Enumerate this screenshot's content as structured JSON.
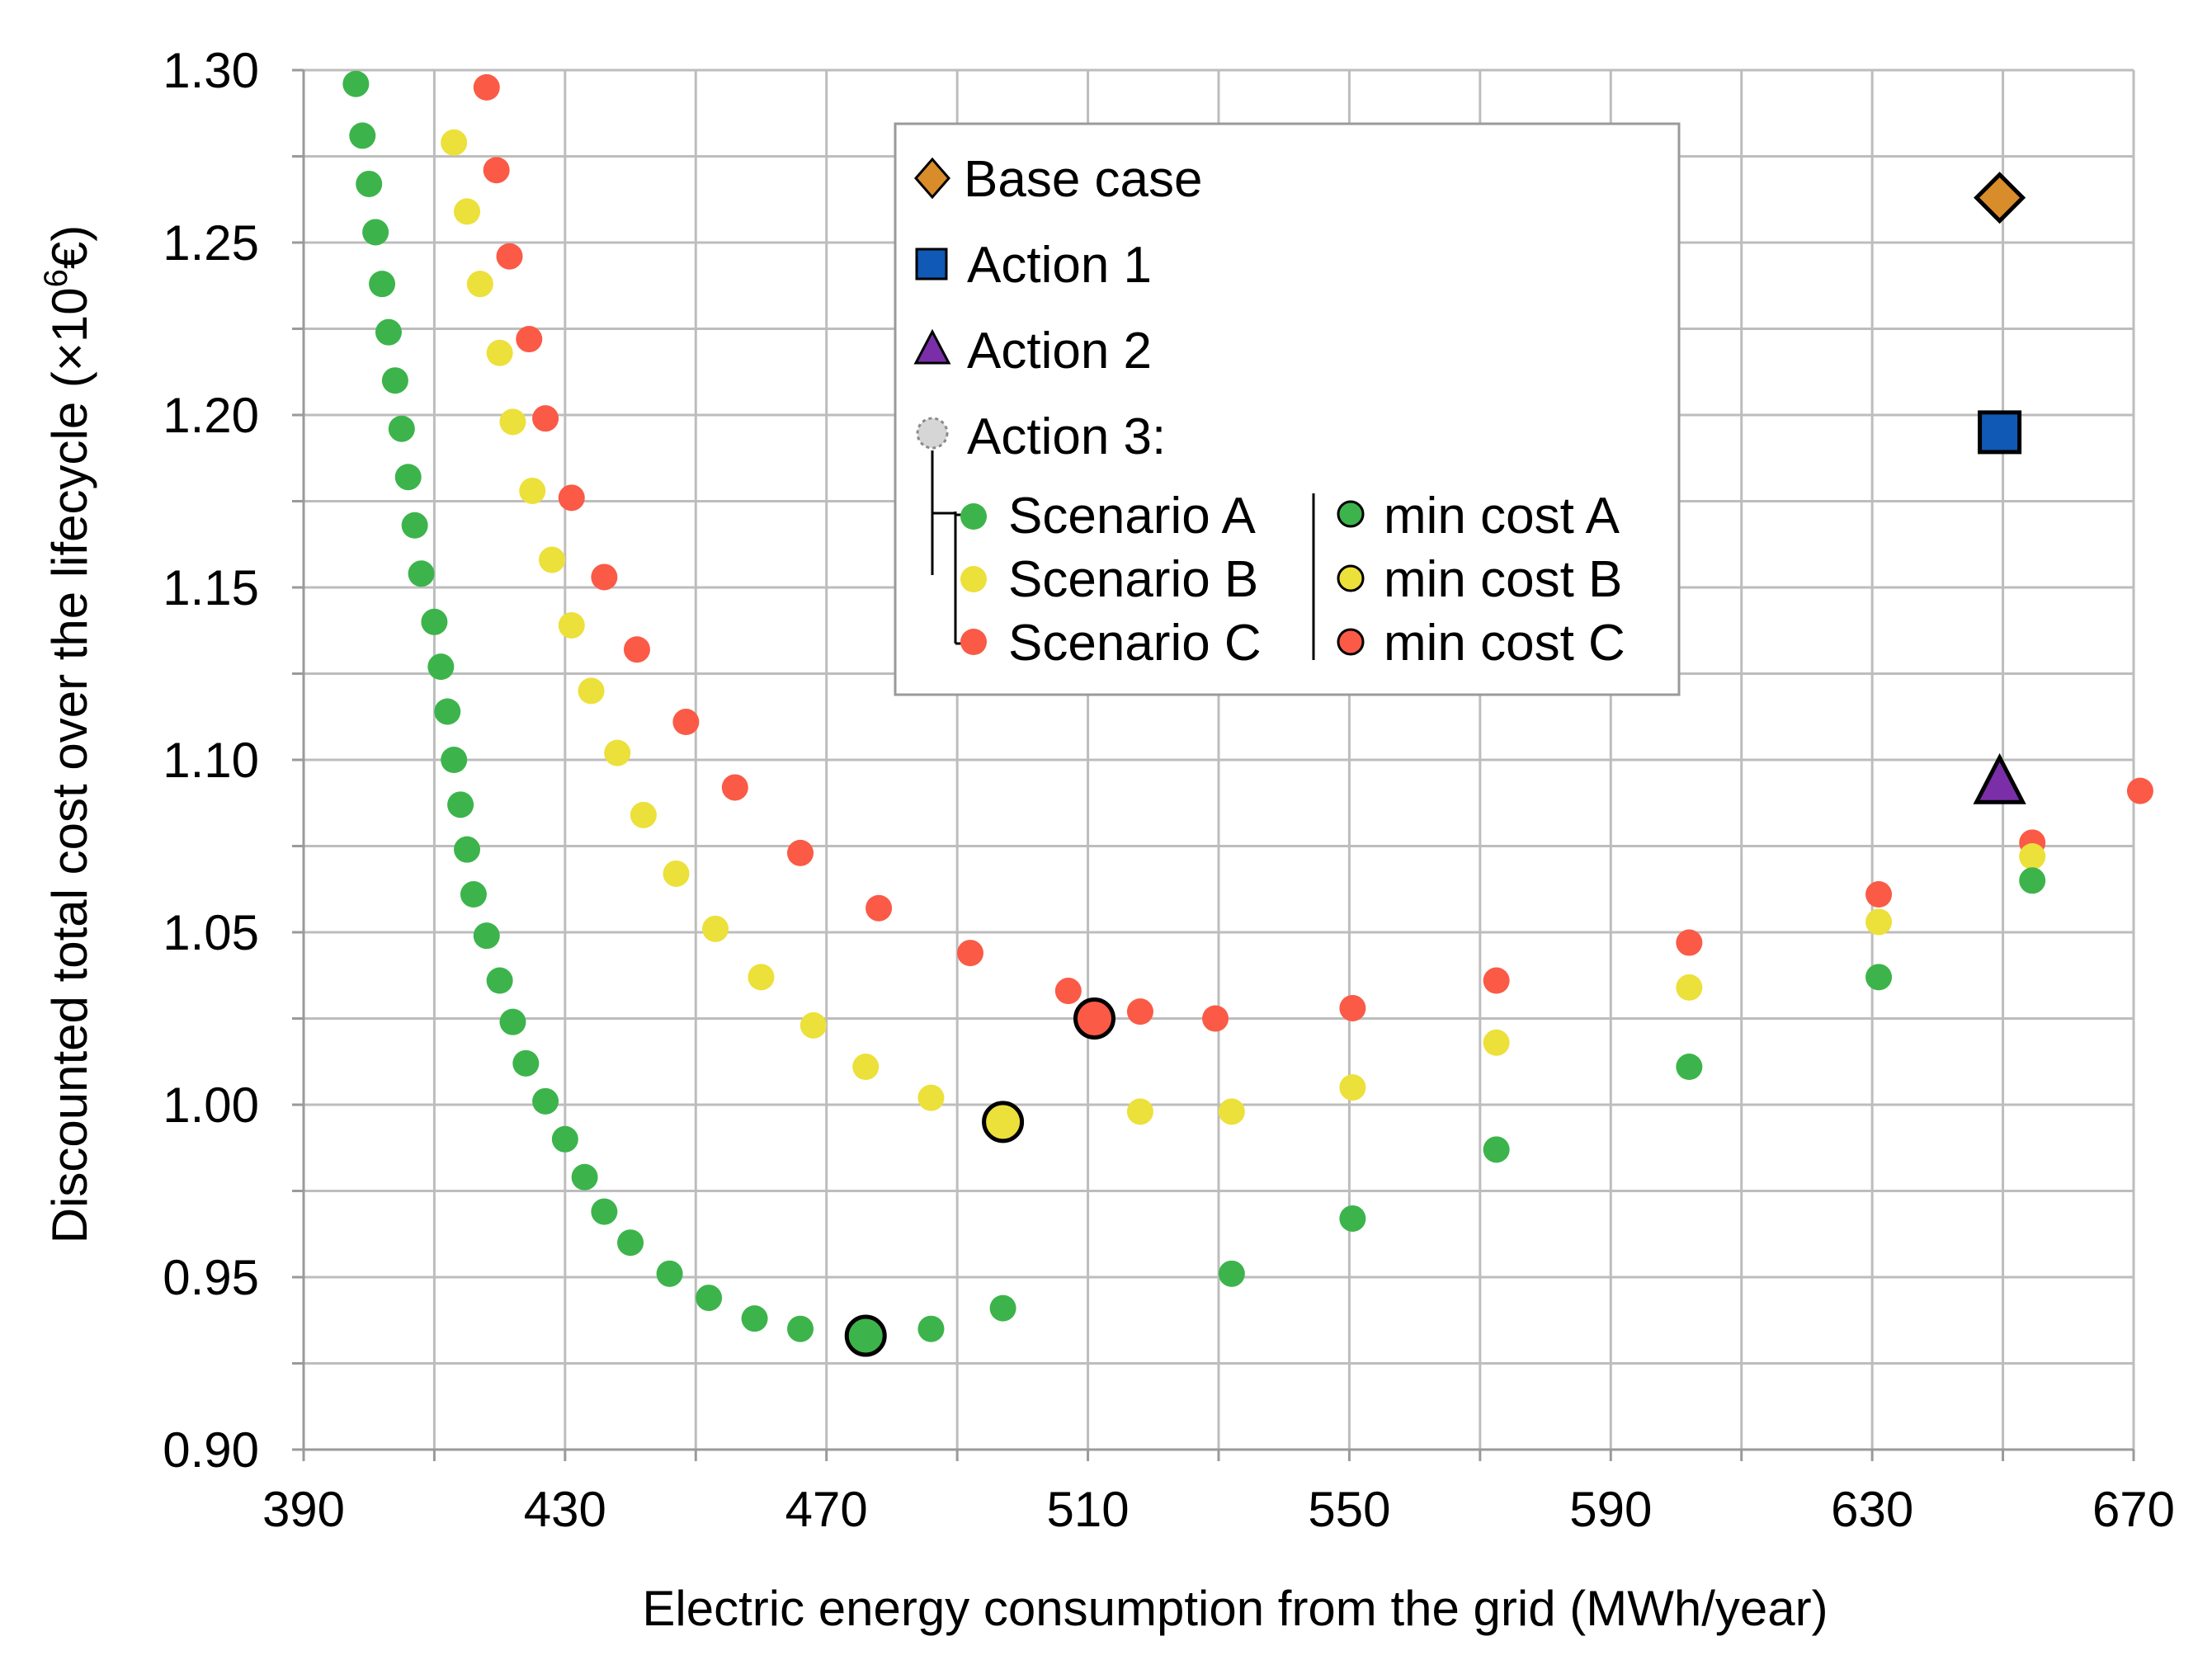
{
  "chart_data": {
    "type": "scatter",
    "title": "",
    "xlabel": "Electric energy consumption from the grid (MWh/year)",
    "ylabel_parts": [
      "Discounted total cost over the lifecycle (×10",
      "6",
      "€)"
    ],
    "xlim": [
      390,
      670
    ],
    "ylim": [
      0.9,
      1.3
    ],
    "grid": true,
    "x_grid_step": 20,
    "y_grid_step": 0.025,
    "x_ticks": [
      390,
      430,
      470,
      510,
      550,
      590,
      630,
      670
    ],
    "x_tick_labels": [
      "390",
      "430",
      "470",
      "510",
      "550",
      "590",
      "630",
      "670"
    ],
    "y_ticks": [
      0.9,
      0.95,
      1.0,
      1.05,
      1.1,
      1.15,
      1.2,
      1.25,
      1.3
    ],
    "y_tick_labels": [
      "0.90",
      "0.95",
      "1.00",
      "1.05",
      "1.10",
      "1.15",
      "1.20",
      "1.25",
      "1.30"
    ],
    "colors": {
      "scenario_a": "#3cb44b",
      "scenario_b": "#ece03a",
      "scenario_c": "#fa5a46",
      "base_case": "#d98c2a",
      "action_1": "#1059b5",
      "action_2": "#7a2fa8",
      "action_3": "#d6d6d6"
    },
    "series": [
      {
        "name": "Scenario C",
        "key": "scenario_c",
        "marker": "circle",
        "points": [
          [
            418,
            1.295
          ],
          [
            419.5,
            1.271
          ],
          [
            421.5,
            1.246
          ],
          [
            424.5,
            1.222
          ],
          [
            427,
            1.199
          ],
          [
            431,
            1.176
          ],
          [
            436,
            1.153
          ],
          [
            441,
            1.132
          ],
          [
            448.5,
            1.111
          ],
          [
            456,
            1.092
          ],
          [
            466,
            1.073
          ],
          [
            478,
            1.057
          ],
          [
            492,
            1.044
          ],
          [
            507,
            1.033
          ],
          [
            518,
            1.027
          ],
          [
            529.5,
            1.025
          ],
          [
            550.5,
            1.028
          ],
          [
            572.5,
            1.036
          ],
          [
            602,
            1.047
          ],
          [
            631,
            1.061
          ],
          [
            654.5,
            1.076
          ],
          [
            671,
            1.091
          ]
        ]
      },
      {
        "name": "Scenario B",
        "key": "scenario_b",
        "marker": "circle",
        "points": [
          [
            413,
            1.279
          ],
          [
            415,
            1.259
          ],
          [
            417,
            1.238
          ],
          [
            420,
            1.218
          ],
          [
            422,
            1.198
          ],
          [
            425,
            1.178
          ],
          [
            428,
            1.158
          ],
          [
            431,
            1.139
          ],
          [
            434,
            1.12
          ],
          [
            438,
            1.102
          ],
          [
            442,
            1.084
          ],
          [
            447,
            1.067
          ],
          [
            453,
            1.051
          ],
          [
            460,
            1.037
          ],
          [
            468,
            1.023
          ],
          [
            476,
            1.011
          ],
          [
            486,
            1.002
          ],
          [
            497,
            0.997
          ],
          [
            518,
            0.998
          ],
          [
            532,
            0.998
          ],
          [
            550.5,
            1.005
          ],
          [
            572.5,
            1.018
          ],
          [
            602,
            1.034
          ],
          [
            631,
            1.053
          ],
          [
            654.5,
            1.072
          ]
        ]
      },
      {
        "name": "Scenario A",
        "key": "scenario_a",
        "marker": "circle",
        "points": [
          [
            398,
            1.296
          ],
          [
            399,
            1.281
          ],
          [
            400,
            1.267
          ],
          [
            401,
            1.253
          ],
          [
            402,
            1.238
          ],
          [
            403,
            1.224
          ],
          [
            404,
            1.21
          ],
          [
            405,
            1.196
          ],
          [
            406,
            1.182
          ],
          [
            407,
            1.168
          ],
          [
            408,
            1.154
          ],
          [
            410,
            1.14
          ],
          [
            411,
            1.127
          ],
          [
            412,
            1.114
          ],
          [
            413,
            1.1
          ],
          [
            414,
            1.087
          ],
          [
            415,
            1.074
          ],
          [
            416,
            1.061
          ],
          [
            418,
            1.049
          ],
          [
            420,
            1.036
          ],
          [
            422,
            1.024
          ],
          [
            424,
            1.012
          ],
          [
            427,
            1.001
          ],
          [
            430,
            0.99
          ],
          [
            433,
            0.979
          ],
          [
            436,
            0.969
          ],
          [
            440,
            0.96
          ],
          [
            446,
            0.951
          ],
          [
            452,
            0.944
          ],
          [
            459,
            0.938
          ],
          [
            466,
            0.935
          ],
          [
            476,
            0.934
          ],
          [
            486,
            0.935
          ],
          [
            497,
            0.941
          ],
          [
            532,
            0.951
          ],
          [
            550.5,
            0.967
          ],
          [
            572.5,
            0.987
          ],
          [
            602,
            1.011
          ],
          [
            631,
            1.037
          ],
          [
            654.5,
            1.065
          ]
        ]
      },
      {
        "name": "min cost A",
        "key": "scenario_a",
        "marker": "circle-large",
        "points": [
          [
            476,
            0.933
          ]
        ]
      },
      {
        "name": "min cost B",
        "key": "scenario_b",
        "marker": "circle-large",
        "points": [
          [
            497,
            0.995
          ]
        ]
      },
      {
        "name": "min cost C",
        "key": "scenario_c",
        "marker": "circle-large",
        "points": [
          [
            511,
            1.025
          ]
        ]
      },
      {
        "name": "Base case",
        "key": "base_case",
        "marker": "diamond",
        "points": [
          [
            649.5,
            1.263
          ]
        ]
      },
      {
        "name": "Action 1",
        "key": "action_1",
        "marker": "square",
        "points": [
          [
            649.5,
            1.195
          ]
        ]
      },
      {
        "name": "Action 2",
        "key": "action_2",
        "marker": "triangle",
        "points": [
          [
            649.5,
            1.093
          ]
        ]
      }
    ],
    "legend": {
      "placement": "top-center",
      "base_case": "Base case",
      "action_1": "Action 1",
      "action_2": "Action 2",
      "action_3": "Action 3:",
      "scenario_a": "Scenario A",
      "scenario_b": "Scenario B",
      "scenario_c": "Scenario C",
      "min_cost_a": "min cost A",
      "min_cost_b": "min cost B",
      "min_cost_c": "min cost C"
    }
  }
}
